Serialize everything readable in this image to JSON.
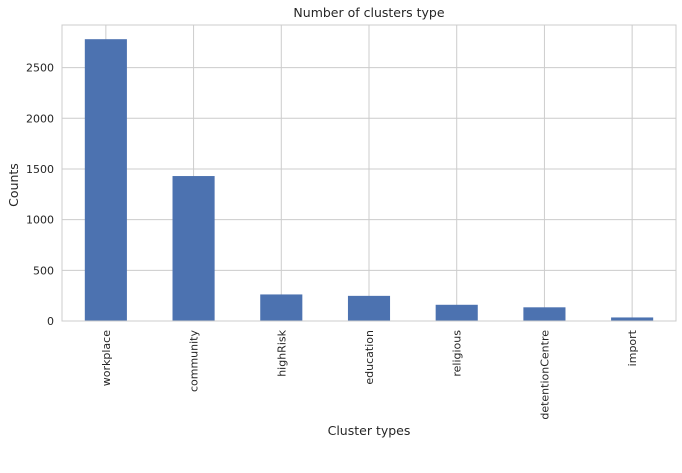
{
  "chart_data": {
    "type": "bar",
    "title": "Number of clusters type",
    "xlabel": "Cluster types",
    "ylabel": "Counts",
    "categories": [
      "workplace",
      "community",
      "highRisk",
      "education",
      "religious",
      "detentionCentre",
      "import"
    ],
    "values": [
      2780,
      1430,
      262,
      248,
      160,
      135,
      35
    ],
    "ylim": [
      0,
      2920
    ],
    "yticks": [
      0,
      500,
      1000,
      1500,
      2000,
      2500
    ],
    "grid": true,
    "bar_color": "#4c72b0",
    "grid_color": "#cccccc",
    "spine_color": "#cccccc"
  }
}
